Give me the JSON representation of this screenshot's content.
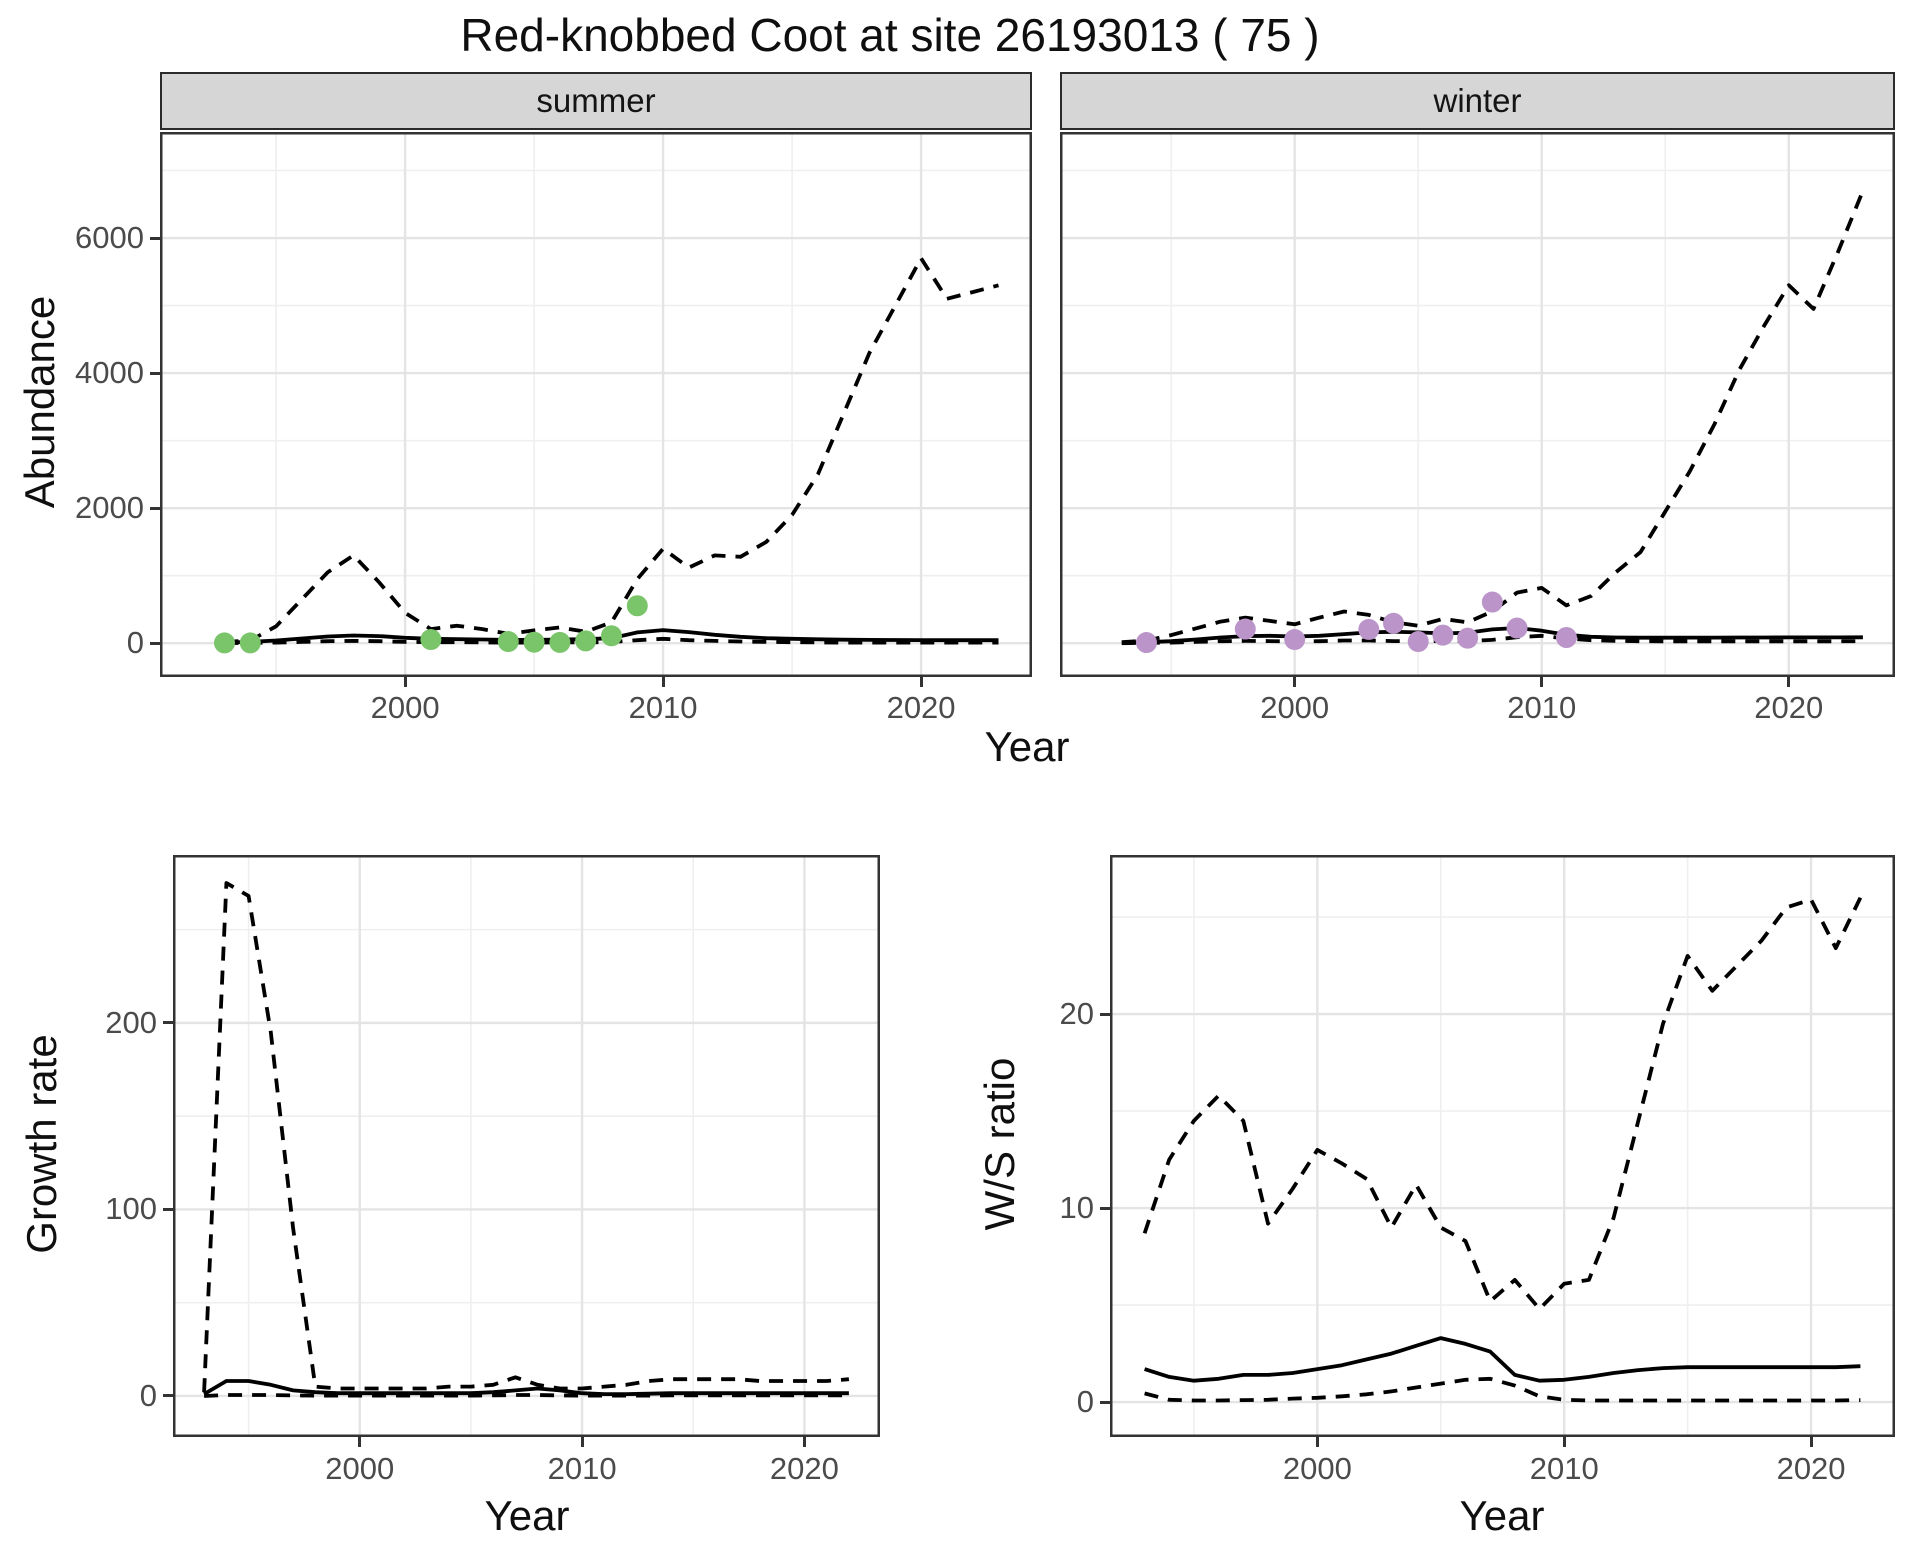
{
  "title": "Red-knobbed Coot at site 26193013 ( 75 )",
  "colors": {
    "summer_point": "#7ac46a",
    "winter_point": "#bb95c9",
    "line": "#000000",
    "grid_major": "#e4e4e4",
    "grid_minor": "#efefef",
    "strip_bg": "#d6d6d6",
    "panel_border": "#333333",
    "tick_label": "#4b4b4b"
  },
  "chart_data": [
    {
      "id": "abundance_summer",
      "type": "line",
      "facet_label": "summer",
      "xlabel": "Year",
      "ylabel": "Abundance",
      "xlim": [
        1990.5,
        2024.3
      ],
      "ylim": [
        -500,
        7570
      ],
      "xticks": {
        "major": [
          2000,
          2010,
          2020
        ],
        "labels": [
          "2000",
          "2010",
          "2020"
        ],
        "minor": [
          1995,
          2005,
          2015
        ]
      },
      "yticks": {
        "major": [
          0,
          2000,
          4000,
          6000
        ],
        "labels": [
          "0",
          "2000",
          "4000",
          "6000"
        ],
        "minor": [
          1000,
          3000,
          5000,
          7000
        ]
      },
      "grid": true,
      "legend": "none",
      "x": [
        1993,
        1994,
        1995,
        1996,
        1997,
        1998,
        1999,
        2000,
        2001,
        2002,
        2003,
        2004,
        2005,
        2006,
        2007,
        2008,
        2009,
        2010,
        2011,
        2012,
        2013,
        2014,
        2015,
        2016,
        2017,
        2018,
        2019,
        2020,
        2021,
        2022,
        2023
      ],
      "series": [
        {
          "name": "model_fit",
          "style": "solid",
          "values": [
            10,
            20,
            40,
            70,
            100,
            115,
            105,
            80,
            65,
            60,
            55,
            50,
            50,
            55,
            60,
            75,
            160,
            195,
            165,
            125,
            95,
            75,
            65,
            58,
            52,
            50,
            48,
            46,
            45,
            45,
            45
          ]
        },
        {
          "name": "upper_ci",
          "style": "dashed",
          "values": [
            20,
            40,
            250,
            650,
            1050,
            1300,
            900,
            450,
            210,
            260,
            210,
            140,
            190,
            235,
            170,
            310,
            950,
            1400,
            1120,
            1300,
            1280,
            1500,
            1900,
            2500,
            3400,
            4300,
            5000,
            5700,
            5100,
            5200,
            5300
          ]
        },
        {
          "name": "lower_ci",
          "style": "dashed",
          "values": [
            0,
            5,
            10,
            20,
            30,
            35,
            30,
            20,
            15,
            15,
            12,
            10,
            10,
            12,
            12,
            18,
            45,
            65,
            45,
            35,
            25,
            20,
            15,
            12,
            10,
            10,
            10,
            10,
            10,
            10,
            10
          ]
        }
      ],
      "points": {
        "name": "observed_counts",
        "color_key": "summer_point",
        "x": [
          1993,
          1994,
          2001,
          2004,
          2005,
          2006,
          2007,
          2008,
          2009
        ],
        "y": [
          5,
          5,
          55,
          25,
          15,
          12,
          35,
          110,
          555
        ]
      }
    },
    {
      "id": "abundance_winter",
      "type": "line",
      "facet_label": "winter",
      "xlabel": "Year",
      "ylabel": "",
      "xlim": [
        1990.5,
        2024.3
      ],
      "ylim": [
        -500,
        7570
      ],
      "xticks": {
        "major": [
          2000,
          2010,
          2020
        ],
        "labels": [
          "2000",
          "2010",
          "2020"
        ],
        "minor": [
          1995,
          2005,
          2015
        ]
      },
      "yticks": {
        "major": [
          0,
          2000,
          4000,
          6000
        ],
        "labels": [],
        "minor": [
          1000,
          3000,
          5000,
          7000
        ]
      },
      "grid": true,
      "legend": "none",
      "x": [
        1993,
        1994,
        1995,
        1996,
        1997,
        1998,
        1999,
        2000,
        2001,
        2002,
        2003,
        2004,
        2005,
        2006,
        2007,
        2008,
        2009,
        2010,
        2011,
        2012,
        2013,
        2014,
        2015,
        2016,
        2017,
        2018,
        2019,
        2020,
        2021,
        2022,
        2023
      ],
      "series": [
        {
          "name": "model_fit",
          "style": "solid",
          "values": [
            8,
            15,
            30,
            55,
            85,
            105,
            110,
            100,
            110,
            135,
            160,
            170,
            160,
            145,
            155,
            205,
            225,
            185,
            125,
            95,
            85,
            82,
            82,
            83,
            84,
            85,
            85,
            86,
            86,
            87,
            88
          ]
        },
        {
          "name": "upper_ci",
          "style": "dashed",
          "values": [
            15,
            40,
            120,
            220,
            320,
            380,
            330,
            280,
            380,
            470,
            420,
            310,
            260,
            360,
            310,
            470,
            750,
            820,
            560,
            700,
            1050,
            1350,
            1950,
            2550,
            3250,
            4050,
            4700,
            5300,
            4950,
            5800,
            6700
          ]
        },
        {
          "name": "lower_ci",
          "style": "dashed",
          "values": [
            0,
            5,
            10,
            20,
            30,
            35,
            32,
            25,
            30,
            40,
            40,
            32,
            28,
            35,
            32,
            50,
            90,
            110,
            70,
            45,
            35,
            30,
            28,
            28,
            28,
            28,
            28,
            28,
            28,
            28,
            30
          ]
        }
      ],
      "points": {
        "name": "observed_counts",
        "color_key": "winter_point",
        "x": [
          1994,
          1998,
          2000,
          2003,
          2004,
          2005,
          2006,
          2007,
          2008,
          2009,
          2011
        ],
        "y": [
          10,
          210,
          55,
          205,
          295,
          25,
          120,
          75,
          610,
          225,
          85
        ]
      }
    },
    {
      "id": "growth_rate",
      "type": "line",
      "facet_label": "",
      "xlabel": "Year",
      "ylabel": "Growth rate",
      "xlim": [
        1991.6,
        2023.4
      ],
      "ylim": [
        -22,
        290
      ],
      "xticks": {
        "major": [
          2000,
          2010,
          2020
        ],
        "labels": [
          "2000",
          "2010",
          "2020"
        ],
        "minor": [
          1995,
          2005,
          2015
        ]
      },
      "yticks": {
        "major": [
          0,
          100,
          200
        ],
        "labels": [
          "0",
          "100",
          "200"
        ],
        "minor": [
          50,
          150,
          250
        ]
      },
      "grid": true,
      "legend": "none",
      "x": [
        1993,
        1994,
        1995,
        1996,
        1997,
        1998,
        1999,
        2000,
        2001,
        2002,
        2003,
        2004,
        2005,
        2006,
        2007,
        2008,
        2009,
        2010,
        2011,
        2012,
        2013,
        2014,
        2015,
        2016,
        2017,
        2018,
        2019,
        2020,
        2021,
        2022
      ],
      "series": [
        {
          "name": "model_fit",
          "style": "solid",
          "values": [
            1,
            8,
            8,
            6,
            3,
            2,
            1.5,
            1.5,
            1.5,
            1.5,
            1.5,
            1.5,
            1.5,
            2,
            3,
            4,
            3,
            1.5,
            1,
            1,
            1.2,
            1.5,
            1.5,
            1.5,
            1.5,
            1.5,
            1.5,
            1.5,
            1.5,
            1.5
          ]
        },
        {
          "name": "upper_ci",
          "style": "dashed",
          "values": [
            2,
            275,
            268,
            195,
            90,
            5,
            4,
            4,
            4,
            4,
            4,
            5,
            5,
            6,
            10,
            6,
            4,
            4,
            5,
            6,
            8,
            9,
            9,
            9,
            9,
            8,
            8,
            8,
            8,
            9
          ]
        },
        {
          "name": "lower_ci",
          "style": "dashed",
          "values": [
            0,
            0.5,
            0.5,
            0.5,
            0.3,
            0.2,
            0.2,
            0.2,
            0.2,
            0.2,
            0.2,
            0.2,
            0.2,
            0.3,
            0.5,
            0.5,
            0.3,
            0.2,
            0.2,
            0.2,
            0.2,
            0.3,
            0.3,
            0.3,
            0.3,
            0.3,
            0.3,
            0.3,
            0.3,
            0.3
          ]
        }
      ],
      "points": null
    },
    {
      "id": "ws_ratio",
      "type": "line",
      "facet_label": "",
      "xlabel": "Year",
      "ylabel": "W/S ratio",
      "xlim": [
        1991.6,
        2023.4
      ],
      "ylim": [
        -1.8,
        28.2
      ],
      "xticks": {
        "major": [
          2000,
          2010,
          2020
        ],
        "labels": [
          "2000",
          "2010",
          "2020"
        ],
        "minor": [
          1995,
          2005,
          2015
        ]
      },
      "yticks": {
        "major": [
          0,
          10,
          20
        ],
        "labels": [
          "0",
          "10",
          "20"
        ],
        "minor": [
          5,
          15,
          25
        ]
      },
      "grid": true,
      "legend": "none",
      "x": [
        1993,
        1994,
        1995,
        1996,
        1997,
        1998,
        1999,
        2000,
        2001,
        2002,
        2003,
        2004,
        2005,
        2006,
        2007,
        2008,
        2009,
        2010,
        2011,
        2012,
        2013,
        2014,
        2015,
        2016,
        2017,
        2018,
        2019,
        2020,
        2021,
        2022
      ],
      "series": [
        {
          "name": "model_fit",
          "style": "solid",
          "values": [
            1.7,
            1.3,
            1.1,
            1.2,
            1.4,
            1.4,
            1.5,
            1.7,
            1.9,
            2.2,
            2.5,
            2.9,
            3.3,
            3.0,
            2.6,
            1.4,
            1.1,
            1.15,
            1.3,
            1.5,
            1.65,
            1.75,
            1.8,
            1.8,
            1.8,
            1.8,
            1.8,
            1.8,
            1.8,
            1.85
          ]
        },
        {
          "name": "upper_ci",
          "style": "dashed",
          "values": [
            8.7,
            12.5,
            14.5,
            15.8,
            14.5,
            9.2,
            11.0,
            13.0,
            12.3,
            11.5,
            9.0,
            11.2,
            9.0,
            8.3,
            5.2,
            6.3,
            4.8,
            6.1,
            6.3,
            9.5,
            14.5,
            19.5,
            23.0,
            21.2,
            22.5,
            23.8,
            25.5,
            25.9,
            23.4,
            26.0
          ]
        },
        {
          "name": "lower_ci",
          "style": "dashed",
          "values": [
            0.45,
            0.12,
            0.08,
            0.08,
            0.1,
            0.12,
            0.18,
            0.22,
            0.3,
            0.4,
            0.55,
            0.75,
            0.95,
            1.15,
            1.2,
            0.85,
            0.3,
            0.12,
            0.08,
            0.08,
            0.08,
            0.08,
            0.08,
            0.08,
            0.08,
            0.08,
            0.08,
            0.08,
            0.08,
            0.1
          ]
        }
      ],
      "points": null
    }
  ]
}
